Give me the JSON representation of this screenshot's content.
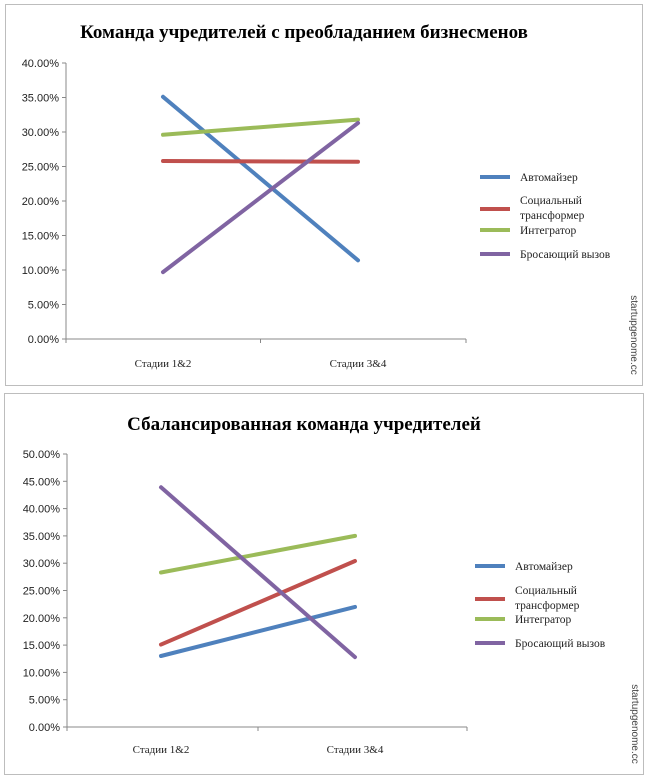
{
  "watermark": "startupgenome.cc",
  "chart_data": [
    {
      "type": "line",
      "title": "Команда учредителей с преобладанием бизнесменов",
      "categories": [
        "Стадии 1&2",
        "Стадии 3&4"
      ],
      "ylim": [
        0,
        40
      ],
      "yticks": [
        "0.00%",
        "5.00%",
        "10.00%",
        "15.00%",
        "20.00%",
        "25.00%",
        "30.00%",
        "35.00%",
        "40.00%"
      ],
      "grid": false,
      "legend": "right",
      "series": [
        {
          "name": "Автомайзер",
          "values": [
            35.1,
            11.4
          ],
          "color": "#4f81bd"
        },
        {
          "name": "Социальный трансформер",
          "values": [
            25.8,
            25.7
          ],
          "color": "#c0504d"
        },
        {
          "name": "Интегратор",
          "values": [
            29.6,
            31.8
          ],
          "color": "#9bbb59"
        },
        {
          "name": "Бросающий вызов",
          "values": [
            9.7,
            31.3
          ],
          "color": "#8064a2"
        }
      ]
    },
    {
      "type": "line",
      "title": "Сбалансированная команда учредителей",
      "categories": [
        "Стадии 1&2",
        "Стадии 3&4"
      ],
      "ylim": [
        0,
        50
      ],
      "yticks": [
        "0.00%",
        "5.00%",
        "10.00%",
        "15.00%",
        "20.00%",
        "25.00%",
        "30.00%",
        "35.00%",
        "40.00%",
        "45.00%",
        "50.00%"
      ],
      "grid": false,
      "legend": "right",
      "series": [
        {
          "name": "Автомайзер",
          "values": [
            13.0,
            22.0
          ],
          "color": "#4f81bd"
        },
        {
          "name": "Социальный трансформер",
          "values": [
            15.1,
            30.4
          ],
          "color": "#c0504d"
        },
        {
          "name": "Интегратор",
          "values": [
            28.3,
            35.0
          ],
          "color": "#9bbb59"
        },
        {
          "name": "Бросающий вызов",
          "values": [
            43.9,
            12.8
          ],
          "color": "#8064a2"
        }
      ]
    }
  ]
}
